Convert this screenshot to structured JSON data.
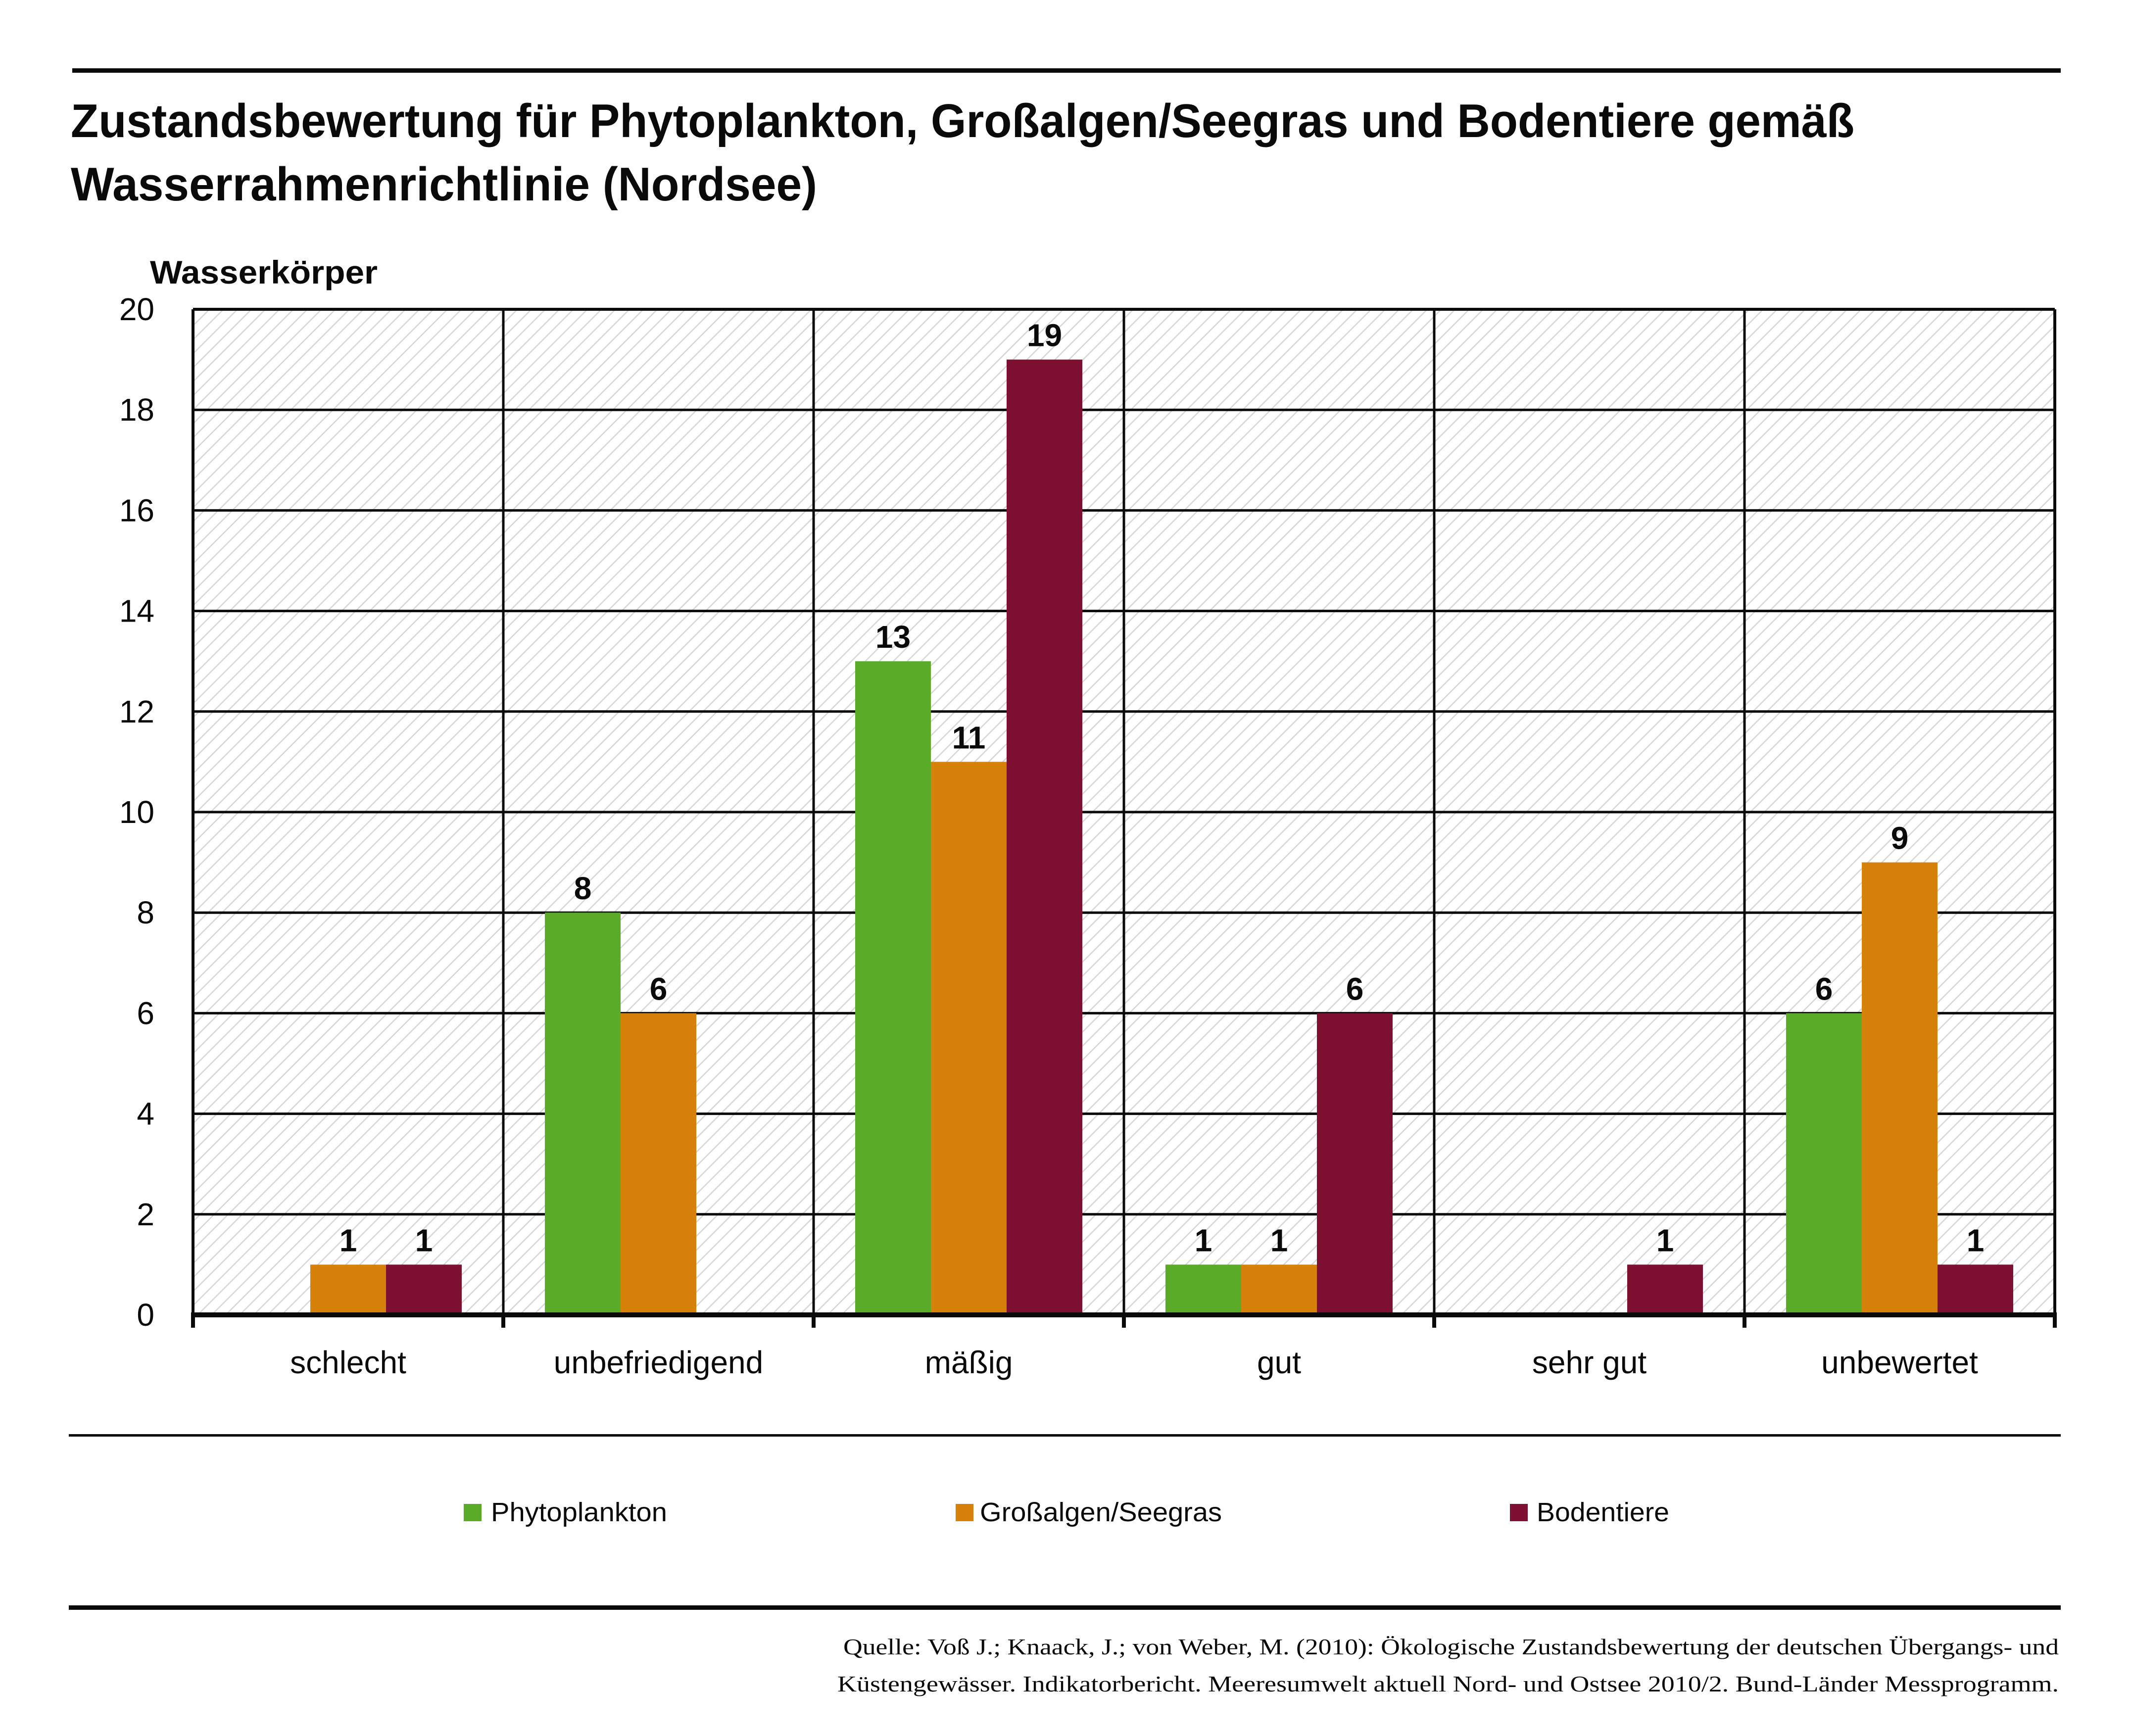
{
  "header": {
    "title_line1": "Zustandsbewertung für Phytoplankton, Großalgen/Seegras und Bodentiere gemäß",
    "title_line2": "Wasserrahmenrichtlinie (Nordsee)"
  },
  "colors": {
    "phytoplankton": "#5aab28",
    "grossalgen": "#d6820a",
    "bodentiere": "#7e1032",
    "hatch": "#d6d6d6",
    "grid": "#0a0a0a"
  },
  "chart_data": {
    "type": "bar",
    "title": "Zustandsbewertung für Phytoplankton, Großalgen/Seegras und Bodentiere gemäß Wasserrahmenrichtlinie (Nordsee)",
    "xlabel": "",
    "ylabel": "Wasserkörper",
    "ylim": [
      0,
      20
    ],
    "yticks": [
      0,
      2,
      4,
      6,
      8,
      10,
      12,
      14,
      16,
      18,
      20
    ],
    "ytick_labels": [
      "0",
      "2",
      "4",
      "6",
      "8",
      "10",
      "12",
      "14",
      "16",
      "18",
      "20"
    ],
    "grid": true,
    "legend_position": "bottom",
    "categories": [
      "schlecht",
      "unbefriedigend",
      "mäßig",
      "gut",
      "sehr gut",
      "unbewertet"
    ],
    "series": [
      {
        "name": "Phytoplankton",
        "color_key": "phytoplankton",
        "values": [
          0,
          8,
          13,
          1,
          0,
          6
        ]
      },
      {
        "name": "Großalgen/Seegras",
        "color_key": "grossalgen",
        "values": [
          1,
          6,
          11,
          1,
          0,
          9
        ]
      },
      {
        "name": "Bodentiere",
        "color_key": "bodentiere",
        "values": [
          1,
          0,
          19,
          6,
          1,
          1
        ]
      }
    ],
    "data_labels_shown_for_nonzero": true
  },
  "legend": {
    "items": [
      {
        "label": "Phytoplankton"
      },
      {
        "label": "Großalgen/Seegras"
      },
      {
        "label": "Bodentiere"
      }
    ]
  },
  "source": {
    "line1": "Quelle: Voß J.; Knaack, J.; von Weber, M. (2010): Ökologische Zustandsbewertung der deutschen Übergangs- und",
    "line2": "Küstengewässer. Indikatorbericht.  Meeresumwelt aktuell Nord- und Ostsee 2010/2. Bund-Länder Messprogramm."
  }
}
